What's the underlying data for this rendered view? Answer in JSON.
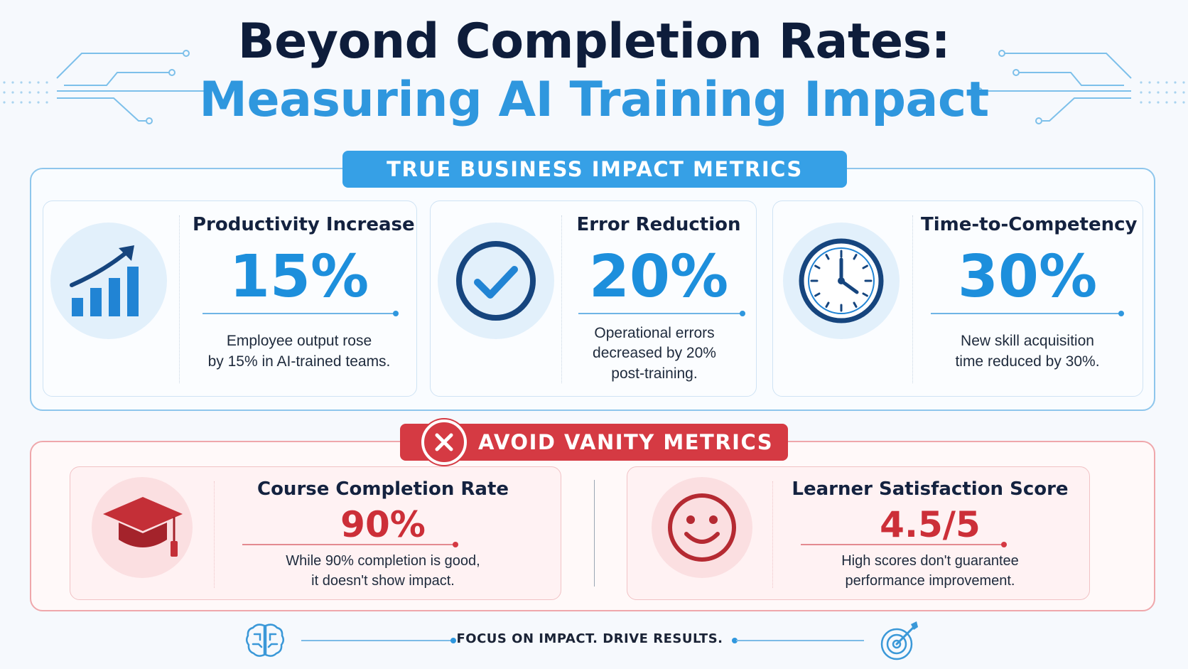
{
  "title": {
    "line1": "Beyond Completion Rates:",
    "line2": "Measuring AI Training Impact"
  },
  "true_metrics": {
    "banner": "TRUE BUSINESS IMPACT METRICS",
    "cards": [
      {
        "title": "Productivity Increase",
        "value": "15%",
        "desc_line1": "Employee output rose",
        "desc_line2": "by 15% in AI-trained teams.",
        "icon": "growth-chart-icon"
      },
      {
        "title": "Error Reduction",
        "value": "20%",
        "desc_line1": "Operational errors",
        "desc_line2": "decreased by 20%",
        "desc_line3": "post-training.",
        "icon": "checkmark-icon"
      },
      {
        "title": "Time-to-Competency",
        "value": "30%",
        "desc_line1": "New skill acquisition",
        "desc_line2": "time reduced by 30%.",
        "icon": "clock-icon"
      }
    ]
  },
  "vanity_metrics": {
    "banner": "AVOID VANITY METRICS",
    "cards": [
      {
        "title": "Course Completion Rate",
        "value": "90%",
        "desc_line1": "While 90% completion is good,",
        "desc_line2": "it doesn't show impact.",
        "icon": "graduation-cap-icon"
      },
      {
        "title": "Learner Satisfaction Score",
        "value": "4.5/5",
        "desc_line1": "High scores don't guarantee",
        "desc_line2": "performance improvement.",
        "icon": "smiley-face-icon"
      }
    ]
  },
  "footer": {
    "text": "FOCUS ON IMPACT. DRIVE RESULTS.",
    "left_icon": "brain-icon",
    "right_icon": "target-icon"
  },
  "colors": {
    "navy": "#0e1d3b",
    "blue": "#2f97de",
    "red": "#d53a43"
  }
}
